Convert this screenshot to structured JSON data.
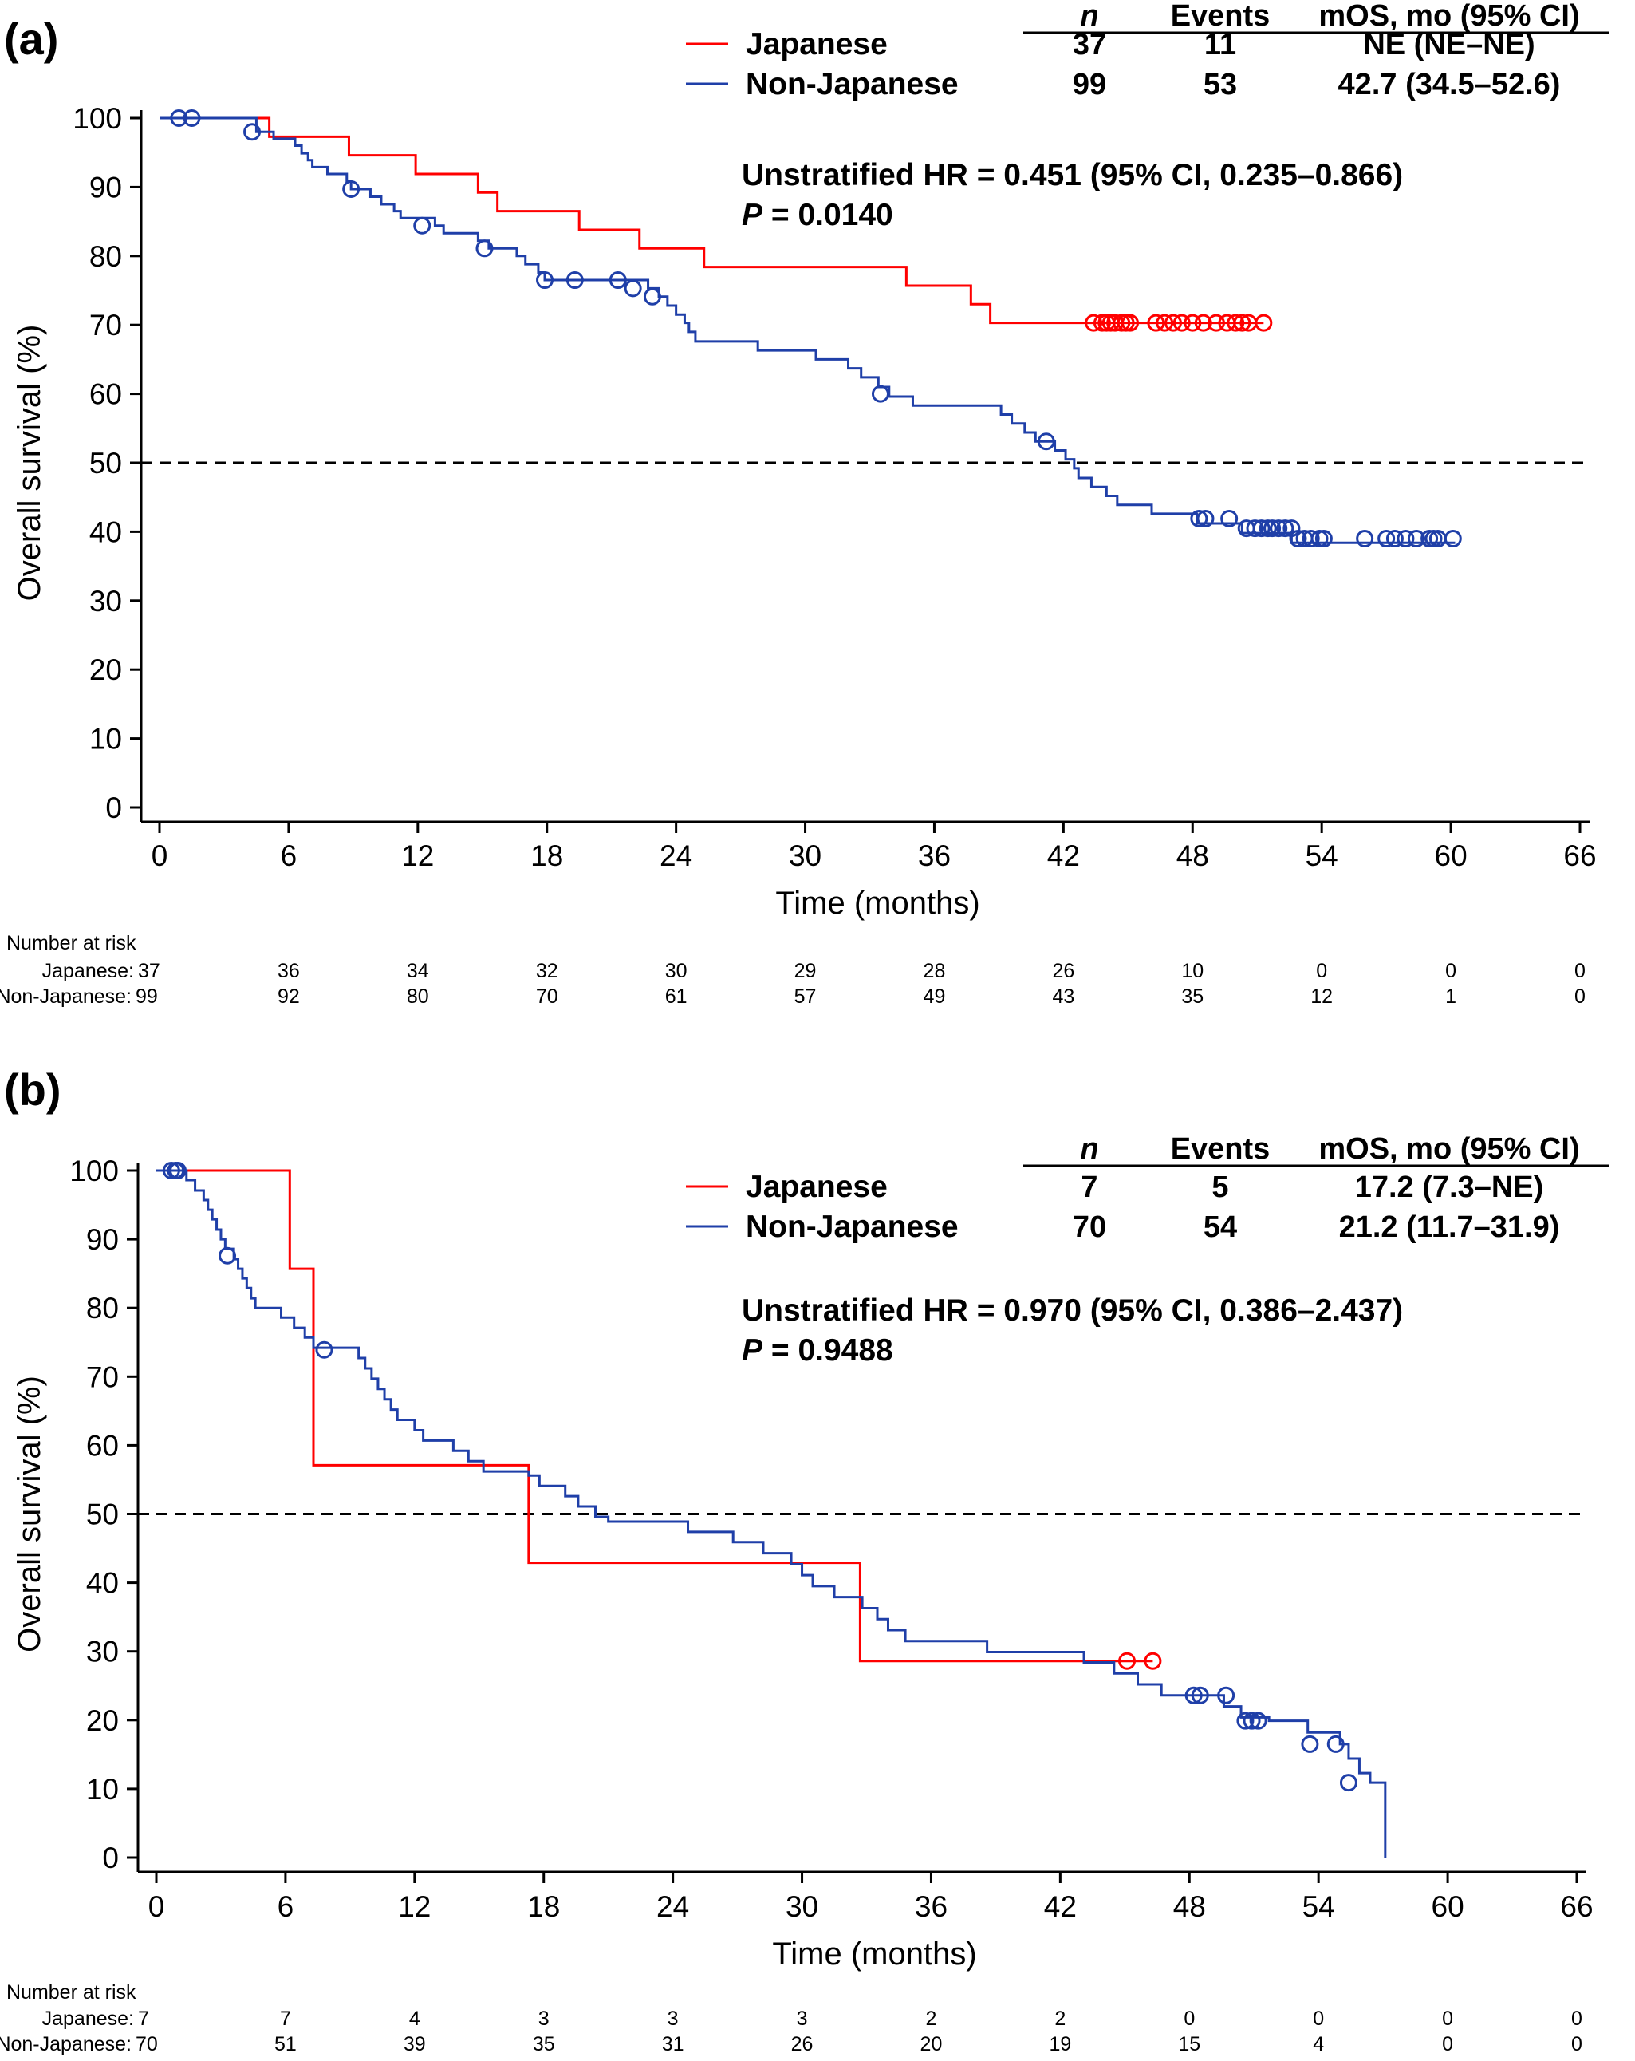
{
  "panels": [
    {
      "label": "(a)",
      "stats_header": {
        "n": "n",
        "events": "Events",
        "mos": "mOS, mo (95% CI)"
      },
      "groups": [
        {
          "name": "Japanese",
          "color": "#ff0000",
          "n": "37",
          "events": "11",
          "mos": "NE (NE–NE)"
        },
        {
          "name": "Non-Japanese",
          "color": "#1f3fa8",
          "n": "99",
          "events": "53",
          "mos": "42.7 (34.5–52.6)"
        }
      ],
      "hr_text": "Unstratified HR = 0.451 (95% CI, 0.235–0.866)",
      "p_prefix": "P",
      "p_value": " = 0.0140",
      "risk_table": {
        "title": "Number at risk",
        "rows": [
          {
            "label": "Japanese:",
            "values": [
              "37",
              "36",
              "34",
              "32",
              "30",
              "29",
              "28",
              "26",
              "10",
              "0",
              "0",
              "0"
            ]
          },
          {
            "label": "Non-Japanese:",
            "values": [
              "99",
              "92",
              "80",
              "70",
              "61",
              "57",
              "49",
              "43",
              "35",
              "12",
              "1",
              "0"
            ]
          }
        ]
      }
    },
    {
      "label": "(b)",
      "stats_header": {
        "n": "n",
        "events": "Events",
        "mos": "mOS, mo (95% CI)"
      },
      "groups": [
        {
          "name": "Japanese",
          "color": "#ff0000",
          "n": "7",
          "events": "5",
          "mos": "17.2 (7.3–NE)"
        },
        {
          "name": "Non-Japanese",
          "color": "#1f3fa8",
          "n": "70",
          "events": "54",
          "mos": "21.2 (11.7–31.9)"
        }
      ],
      "hr_text": "Unstratified HR = 0.970 (95% CI, 0.386–2.437)",
      "p_prefix": "P",
      "p_value": " = 0.9488",
      "risk_table": {
        "title": "Number at risk",
        "rows": [
          {
            "label": "Japanese:",
            "values": [
              "7",
              "7",
              "4",
              "3",
              "3",
              "3",
              "2",
              "2",
              "0",
              "0",
              "0",
              "0"
            ]
          },
          {
            "label": "Non-Japanese:",
            "values": [
              "70",
              "51",
              "39",
              "35",
              "31",
              "26",
              "20",
              "19",
              "15",
              "4",
              "0",
              "0"
            ]
          }
        ]
      }
    }
  ],
  "chart_data": [
    {
      "type": "line",
      "subtype": "kaplan-meier step",
      "xlabel": "Time (months)",
      "ylabel": "Overall survival (%)",
      "xlim": [
        0,
        66
      ],
      "ylim": [
        0,
        100
      ],
      "xticks": [
        0,
        6,
        12,
        18,
        24,
        30,
        36,
        42,
        48,
        54,
        60,
        66
      ],
      "yticks": [
        0,
        10,
        20,
        30,
        40,
        50,
        60,
        70,
        80,
        90,
        100
      ],
      "reference_line": {
        "y": 50,
        "style": "dashed"
      },
      "series": [
        {
          "name": "Japanese",
          "color": "#ff0000",
          "steps": [
            [
              0,
              100
            ],
            [
              5.1,
              97.3
            ],
            [
              8.8,
              94.6
            ],
            [
              11.9,
              91.9
            ],
            [
              14.8,
              89.2
            ],
            [
              15.7,
              86.5
            ],
            [
              19.5,
              83.8
            ],
            [
              22.3,
              81.1
            ],
            [
              25.3,
              78.4
            ],
            [
              34.7,
              75.7
            ],
            [
              37.7,
              73.0
            ],
            [
              38.6,
              70.3
            ],
            [
              51.3,
              70.3
            ]
          ],
          "censored": [
            [
              43.4,
              70.3
            ],
            [
              43.8,
              70.3
            ],
            [
              44.0,
              70.3
            ],
            [
              44.2,
              70.3
            ],
            [
              44.4,
              70.3
            ],
            [
              44.7,
              70.3
            ],
            [
              44.9,
              70.3
            ],
            [
              45.1,
              70.3
            ],
            [
              46.3,
              70.3
            ],
            [
              46.7,
              70.3
            ],
            [
              47.1,
              70.3
            ],
            [
              47.5,
              70.3
            ],
            [
              48.0,
              70.3
            ],
            [
              48.5,
              70.3
            ],
            [
              49.1,
              70.3
            ],
            [
              49.6,
              70.3
            ],
            [
              50.0,
              70.3
            ],
            [
              50.3,
              70.3
            ],
            [
              50.6,
              70.3
            ],
            [
              51.3,
              70.3
            ]
          ]
        },
        {
          "name": "Non-Japanese",
          "color": "#1f3fa8",
          "steps": [
            [
              0,
              100
            ],
            [
              4.5,
              98.0
            ],
            [
              5.3,
              97.0
            ],
            [
              6.3,
              96.0
            ],
            [
              6.6,
              94.9
            ],
            [
              6.9,
              93.9
            ],
            [
              7.1,
              92.9
            ],
            [
              7.8,
              91.9
            ],
            [
              8.7,
              90.8
            ],
            [
              8.9,
              89.7
            ],
            [
              9.8,
              88.6
            ],
            [
              10.3,
              87.5
            ],
            [
              10.9,
              86.5
            ],
            [
              11.2,
              85.5
            ],
            [
              12.8,
              84.4
            ],
            [
              13.2,
              83.3
            ],
            [
              14.8,
              82.2
            ],
            [
              15.3,
              81.1
            ],
            [
              16.6,
              80.0
            ],
            [
              17.0,
              78.8
            ],
            [
              17.6,
              77.6
            ],
            [
              17.9,
              76.5
            ],
            [
              22.7,
              75.3
            ],
            [
              23.2,
              74.1
            ],
            [
              23.6,
              72.8
            ],
            [
              24.0,
              71.5
            ],
            [
              24.4,
              70.3
            ],
            [
              24.6,
              69.0
            ],
            [
              24.9,
              67.6
            ],
            [
              27.8,
              66.3
            ],
            [
              30.5,
              65.0
            ],
            [
              32.0,
              63.7
            ],
            [
              32.6,
              62.4
            ],
            [
              33.4,
              61.0
            ],
            [
              33.9,
              59.6
            ],
            [
              35.0,
              58.3
            ],
            [
              39.1,
              57.0
            ],
            [
              39.6,
              55.7
            ],
            [
              40.2,
              54.4
            ],
            [
              40.7,
              53.1
            ],
            [
              41.6,
              51.8
            ],
            [
              42.1,
              50.5
            ],
            [
              42.5,
              49.2
            ],
            [
              42.7,
              47.8
            ],
            [
              43.3,
              46.5
            ],
            [
              44.0,
              45.2
            ],
            [
              44.5,
              43.9
            ],
            [
              46.1,
              42.6
            ],
            [
              48.2,
              41.2
            ],
            [
              50.3,
              39.8
            ],
            [
              51.2,
              39.8
            ],
            [
              52.6,
              38.4
            ],
            [
              53.6,
              38.4
            ],
            [
              60.2,
              38.4
            ]
          ],
          "censored": [
            [
              0.9,
              100
            ],
            [
              1.5,
              100
            ],
            [
              4.3,
              98.0
            ],
            [
              8.9,
              89.7
            ],
            [
              12.2,
              84.4
            ],
            [
              15.1,
              81.1
            ],
            [
              17.9,
              76.5
            ],
            [
              19.3,
              76.5
            ],
            [
              21.3,
              76.5
            ],
            [
              22.0,
              75.3
            ],
            [
              22.9,
              74.1
            ],
            [
              33.5,
              60.0
            ],
            [
              41.2,
              53.1
            ],
            [
              48.3,
              41.9
            ],
            [
              48.6,
              41.9
            ],
            [
              49.7,
              41.9
            ],
            [
              50.5,
              40.5
            ],
            [
              50.9,
              40.5
            ],
            [
              51.2,
              40.5
            ],
            [
              51.5,
              40.5
            ],
            [
              51.7,
              40.5
            ],
            [
              52.0,
              40.5
            ],
            [
              52.3,
              40.5
            ],
            [
              52.6,
              40.5
            ],
            [
              52.9,
              39.0
            ],
            [
              53.2,
              39.0
            ],
            [
              53.5,
              39.0
            ],
            [
              53.9,
              39.0
            ],
            [
              54.1,
              39.0
            ],
            [
              56.0,
              39.0
            ],
            [
              57.0,
              39.0
            ],
            [
              57.4,
              39.0
            ],
            [
              57.9,
              39.0
            ],
            [
              58.4,
              39.0
            ],
            [
              59.0,
              39.0
            ],
            [
              59.2,
              39.0
            ],
            [
              59.4,
              39.0
            ],
            [
              60.1,
              39.0
            ]
          ]
        }
      ]
    },
    {
      "type": "line",
      "subtype": "kaplan-meier step",
      "xlabel": "Time (months)",
      "ylabel": "Overall survival (%)",
      "xlim": [
        0,
        66
      ],
      "ylim": [
        0,
        100
      ],
      "xticks": [
        0,
        6,
        12,
        18,
        24,
        30,
        36,
        42,
        48,
        54,
        60,
        66
      ],
      "yticks": [
        0,
        10,
        20,
        30,
        40,
        50,
        60,
        70,
        80,
        90,
        100
      ],
      "reference_line": {
        "y": 50,
        "style": "dashed"
      },
      "series": [
        {
          "name": "Japanese",
          "color": "#ff0000",
          "steps": [
            [
              0,
              100
            ],
            [
              6.2,
              85.7
            ],
            [
              7.3,
              57.1
            ],
            [
              17.3,
              42.9
            ],
            [
              32.7,
              28.6
            ],
            [
              46.3,
              28.6
            ]
          ],
          "censored": [
            [
              45.1,
              28.6
            ],
            [
              46.3,
              28.6
            ]
          ]
        },
        {
          "name": "Non-Japanese",
          "color": "#1f3fa8",
          "steps": [
            [
              0,
              100
            ],
            [
              1.4,
              98.6
            ],
            [
              1.8,
              97.1
            ],
            [
              2.2,
              95.7
            ],
            [
              2.4,
              94.3
            ],
            [
              2.6,
              92.9
            ],
            [
              2.8,
              91.4
            ],
            [
              3.0,
              90.0
            ],
            [
              3.2,
              88.6
            ],
            [
              3.6,
              87.1
            ],
            [
              3.8,
              85.7
            ],
            [
              4.0,
              84.3
            ],
            [
              4.2,
              82.9
            ],
            [
              4.4,
              81.4
            ],
            [
              4.6,
              80.0
            ],
            [
              5.8,
              78.6
            ],
            [
              6.4,
              77.1
            ],
            [
              6.9,
              75.7
            ],
            [
              7.3,
              74.2
            ],
            [
              9.4,
              72.7
            ],
            [
              9.7,
              71.2
            ],
            [
              10.0,
              69.7
            ],
            [
              10.3,
              68.2
            ],
            [
              10.6,
              66.7
            ],
            [
              10.9,
              65.2
            ],
            [
              11.2,
              63.7
            ],
            [
              12.0,
              62.2
            ],
            [
              12.4,
              60.7
            ],
            [
              13.8,
              59.2
            ],
            [
              14.5,
              57.7
            ],
            [
              15.2,
              56.2
            ],
            [
              17.3,
              55.6
            ],
            [
              17.8,
              54.1
            ],
            [
              19.0,
              52.6
            ],
            [
              19.6,
              51.1
            ],
            [
              20.4,
              49.6
            ],
            [
              21.0,
              48.9
            ],
            [
              24.7,
              47.4
            ],
            [
              26.8,
              45.9
            ],
            [
              28.2,
              44.3
            ],
            [
              29.5,
              42.7
            ],
            [
              30.0,
              41.1
            ],
            [
              30.5,
              39.5
            ],
            [
              31.5,
              37.9
            ],
            [
              32.8,
              36.3
            ],
            [
              33.5,
              34.7
            ],
            [
              34.0,
              33.1
            ],
            [
              34.8,
              31.5
            ],
            [
              38.6,
              29.9
            ],
            [
              43.1,
              28.4
            ],
            [
              44.5,
              26.8
            ],
            [
              45.6,
              25.2
            ],
            [
              46.7,
              23.6
            ],
            [
              49.6,
              22.0
            ],
            [
              50.4,
              20.4
            ],
            [
              51.7,
              19.9
            ],
            [
              53.5,
              18.2
            ],
            [
              55.0,
              16.5
            ],
            [
              55.4,
              14.4
            ],
            [
              55.9,
              12.3
            ],
            [
              56.4,
              10.9
            ],
            [
              57.1,
              10.9
            ],
            [
              57.1,
              0
            ]
          ],
          "censored": [
            [
              0.7,
              100
            ],
            [
              0.9,
              100
            ],
            [
              1.0,
              100
            ],
            [
              3.3,
              87.6
            ],
            [
              7.8,
              73.9
            ],
            [
              48.2,
              23.6
            ],
            [
              48.5,
              23.6
            ],
            [
              49.7,
              23.6
            ],
            [
              50.6,
              19.9
            ],
            [
              50.9,
              19.9
            ],
            [
              51.2,
              19.9
            ],
            [
              53.6,
              16.5
            ],
            [
              54.8,
              16.5
            ],
            [
              55.4,
              10.9
            ]
          ]
        }
      ]
    }
  ]
}
